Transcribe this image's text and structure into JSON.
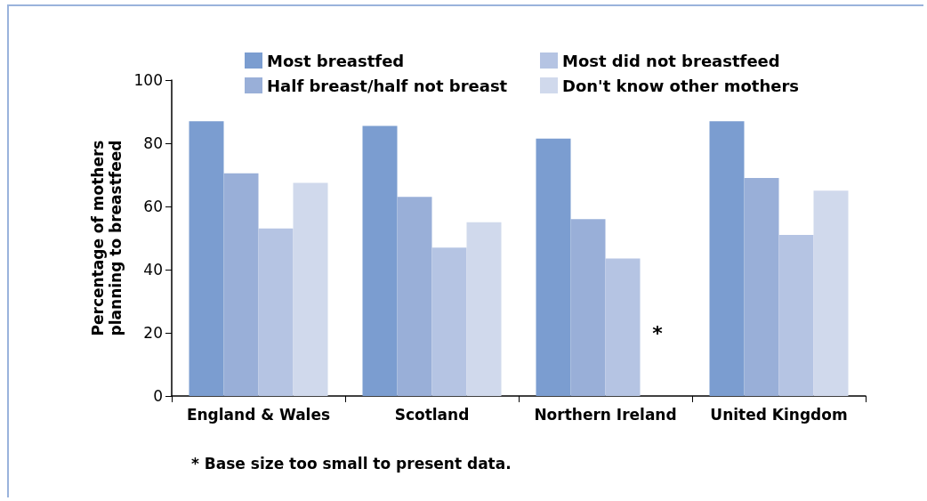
{
  "chart_data": {
    "type": "bar",
    "categories": [
      "England & Wales",
      "Scotland",
      "Northern Ireland",
      "United Kingdom"
    ],
    "series": [
      {
        "name": "Most breastfed",
        "color": "#7b9dd0",
        "values": [
          87,
          85.5,
          81.5,
          87
        ]
      },
      {
        "name": "Half breast/half not breast",
        "color": "#99afd8",
        "values": [
          70.5,
          63,
          56,
          69
        ]
      },
      {
        "name": "Most did not breastfeed",
        "color": "#b5c4e3",
        "values": [
          53,
          47,
          43.5,
          51
        ]
      },
      {
        "name": "Don't know other mothers",
        "color": "#d0d9ec",
        "values": [
          67.5,
          55,
          null,
          65
        ]
      }
    ],
    "ylabel": "Percentage of mothers planning to breastfeed",
    "ylim": [
      0,
      100
    ],
    "yticks": [
      0,
      20,
      40,
      60,
      80,
      100
    ],
    "annotations": [
      {
        "text": "*",
        "x": "Northern Ireland",
        "y": 20
      },
      "* Base size too small to present data."
    ],
    "grid": false,
    "legend": "top"
  }
}
